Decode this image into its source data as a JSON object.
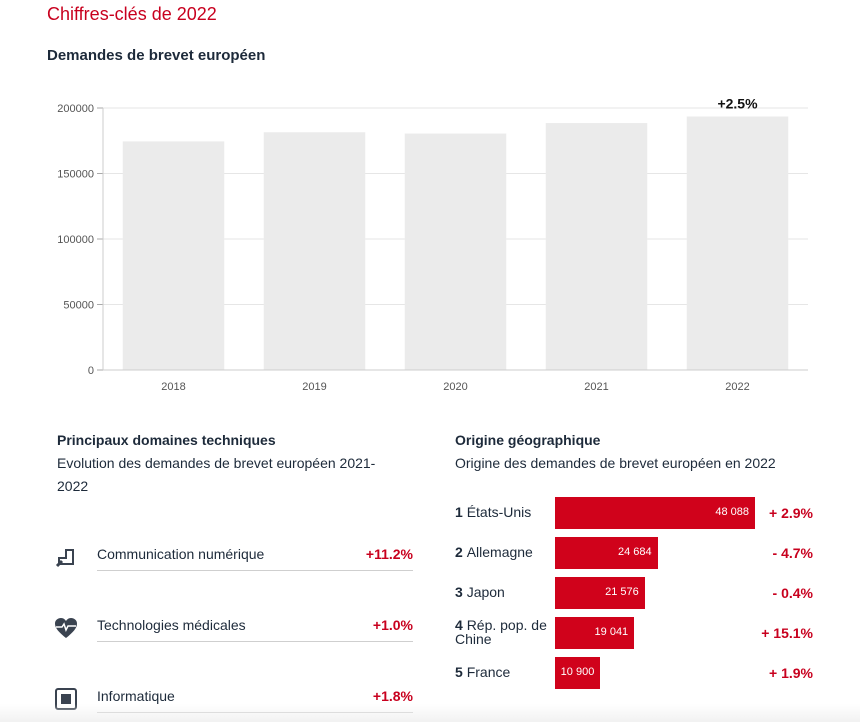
{
  "page_title": "Chiffres-clés de 2022",
  "chart_section": {
    "title": "Demandes de brevet européen"
  },
  "chart_data": {
    "type": "bar",
    "title": "Demandes de brevet européen",
    "categories": [
      "2018",
      "2019",
      "2020",
      "2021",
      "2022"
    ],
    "values": [
      174500,
      181500,
      180500,
      188500,
      193500
    ],
    "ylim": [
      0,
      200000
    ],
    "yticks": [
      "0",
      "50000",
      "100000",
      "150000",
      "200000"
    ],
    "annotation": {
      "category": "2022",
      "text": "+2.5%"
    },
    "bar_color": "#ebebeb",
    "grid": true
  },
  "tech_section": {
    "title": "Principaux domaines techniques",
    "subtitle_line1": "Evolution des demandes de brevet européen 2021-",
    "subtitle_line2": "2022",
    "items": [
      {
        "label": "Communication numérique",
        "change": "+11.2%",
        "icon": "digital-communication-icon"
      },
      {
        "label": "Technologies médicales",
        "change": "+1.0%",
        "icon": "heart-pulse-icon"
      },
      {
        "label": "Informatique",
        "change": "+1.8%",
        "icon": "chip-icon"
      }
    ]
  },
  "geo_section": {
    "title": "Origine géographique",
    "subtitle": "Origine des demandes de brevet européen en 2022",
    "bar_color": "#d0021b",
    "max_value": 48088,
    "items": [
      {
        "rank": "1",
        "country": "États-Unis",
        "value": 48088,
        "value_label": "48 088",
        "change": "+ 2.9%"
      },
      {
        "rank": "2",
        "country": "Allemagne",
        "value": 24684,
        "value_label": "24 684",
        "change": "- 4.7%"
      },
      {
        "rank": "3",
        "country": "Japon",
        "value": 21576,
        "value_label": "21 576",
        "change": "- 0.4%"
      },
      {
        "rank": "4",
        "country": "Rép. pop. de Chine",
        "value": 19041,
        "value_label": "19 041",
        "change": "+ 15.1%"
      },
      {
        "rank": "5",
        "country": "France",
        "value": 10900,
        "value_label": "10 900",
        "change": "+ 1.9%"
      }
    ]
  }
}
